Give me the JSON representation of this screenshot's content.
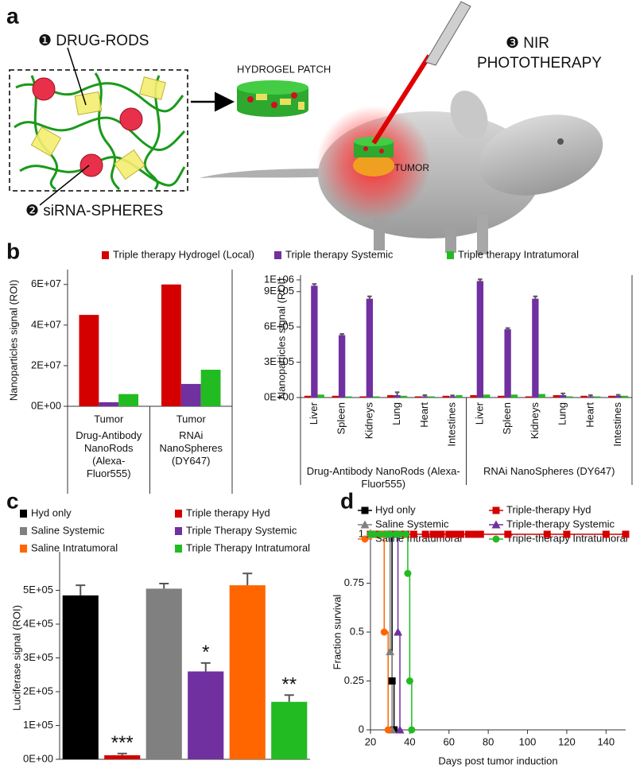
{
  "diagram": {
    "label": "a",
    "drug_rods": "❶ DRUG-RODS",
    "sirna_spheres": "❷ siRNA-SPHERES",
    "patch": "HYDROGEL PATCH",
    "phototherapy": [
      "❸ NIR",
      "PHOTOTHERAPY"
    ],
    "tumor": "TUMOR"
  },
  "chart_data": [
    {
      "type": "bar",
      "label": "b",
      "legend": "top",
      "y_label": "Nanoparticles signal (ROI)",
      "categories": [
        "Tumor",
        "Tumor"
      ],
      "groups": [
        "Drug-Antibody NanoRods (Alexa-Fluor555)",
        "RNAi NanoSpheres (DY647)"
      ],
      "series": [
        {
          "name": "Triple therapy Hydrogel (Local)",
          "color": "#d40000",
          "values": [
            45000000,
            60000000
          ]
        },
        {
          "name": "Triple therapy Systemic",
          "color": "#7030a0",
          "values": [
            2000000,
            11000000
          ]
        },
        {
          "name": "Triple therapy Intratumoral",
          "color": "#22bb22",
          "values": [
            6000000,
            18000000
          ]
        }
      ],
      "ylim": [
        0,
        65000000
      ],
      "yticks": [
        {
          "value": 0,
          "label": "0E+00"
        },
        {
          "value": 20000000,
          "label": "2E+07"
        },
        {
          "value": 40000000,
          "label": "4E+07"
        },
        {
          "value": 60000000,
          "label": "6E+07"
        }
      ]
    },
    {
      "type": "bar",
      "y_label": "Nanoparticles signal (ROI)",
      "categories": [
        "Liver",
        "Spleen",
        "Kidneys",
        "Lung",
        "Heart",
        "Intestines",
        "Liver",
        "Spleen",
        "Kidneys",
        "Lung",
        "Heart",
        "Intestines"
      ],
      "groups": [
        "Drug-Antibody NanoRods (Alexa-Fluor555)",
        "RNAi NanoSpheres (DY647)"
      ],
      "series": [
        {
          "color": "#d40000",
          "values": [
            15000,
            15000,
            10000,
            20000,
            10000,
            15000,
            20000,
            15000,
            10000,
            20000,
            15000,
            15000
          ]
        },
        {
          "color": "#7030a0",
          "values": [
            950000,
            530000,
            840000,
            20000,
            10000,
            10000,
            990000,
            580000,
            840000,
            20000,
            10000,
            15000
          ],
          "errors": [
            15000,
            10000,
            20000,
            25000,
            10000,
            8000,
            15000,
            10000,
            20000,
            15000,
            10000,
            8000
          ]
        },
        {
          "color": "#22bb22",
          "values": [
            25000,
            10000,
            10000,
            15000,
            10000,
            20000,
            25000,
            25000,
            30000,
            10000,
            10000,
            15000
          ]
        }
      ],
      "ylim": [
        0,
        1000000
      ],
      "yticks": [
        {
          "value": 0,
          "label": "0E+00"
        },
        {
          "value": 300000,
          "label": "3E+05"
        },
        {
          "value": 600000,
          "label": "6E+05"
        },
        {
          "value": 900000,
          "label": "9E+05"
        },
        {
          "value": 1000000,
          "label": "1E+06"
        }
      ]
    },
    {
      "type": "bar",
      "label": "c",
      "legend": "top",
      "y_label": "Luciferase signal (ROI)",
      "series": [
        {
          "name": "Hyd only",
          "color": "#000000",
          "values": [
            485000
          ],
          "errors": [
            30000
          ]
        },
        {
          "name": "Triple therapy Hyd",
          "color": "#d40000",
          "values": [
            12000
          ],
          "errors": [
            5000
          ],
          "annotation": "***"
        },
        {
          "name": "Saline Systemic",
          "color": "#808080",
          "values": [
            505000
          ],
          "errors": [
            15000
          ]
        },
        {
          "name": "Triple Therapy Systemic",
          "color": "#7030a0",
          "values": [
            260000
          ],
          "errors": [
            25000
          ],
          "annotation": "*"
        },
        {
          "name": "Saline Intratumoral",
          "color": "#ff6600",
          "values": [
            515000
          ],
          "errors": [
            35000
          ]
        },
        {
          "name": "Triple Therapy Intratumoral",
          "color": "#22bb22",
          "values": [
            170000
          ],
          "errors": [
            20000
          ],
          "annotation": "**"
        }
      ],
      "ylim": [
        0,
        600000
      ],
      "yticks": [
        {
          "value": 0,
          "label": "0E+00"
        },
        {
          "value": 100000,
          "label": "1E+05"
        },
        {
          "value": 200000,
          "label": "2E+05"
        },
        {
          "value": 300000,
          "label": "3E+05"
        },
        {
          "value": 400000,
          "label": "4E+05"
        },
        {
          "value": 500000,
          "label": "5E+05"
        }
      ]
    },
    {
      "type": "line",
      "label": "d",
      "legend": "top",
      "step": true,
      "x_label": "Days post tumor induction",
      "y_label": "Fraction survival",
      "series": [
        {
          "name": "Hyd only",
          "color": "#000000",
          "marker": "square",
          "x": [
            20,
            30,
            31,
            32
          ],
          "values": [
            1,
            1,
            0.25,
            0
          ]
        },
        {
          "name": "Triple-therapy Hyd",
          "color": "#d40000",
          "marker": "square",
          "x": [
            20,
            22,
            24,
            26,
            28,
            30,
            32,
            34,
            36,
            38,
            42,
            48,
            52,
            54,
            56,
            60,
            62,
            64,
            66,
            70,
            72,
            74,
            76,
            90,
            110,
            120,
            140,
            150
          ],
          "values": [
            1,
            1,
            1,
            1,
            1,
            1,
            1,
            1,
            1,
            1,
            1,
            1,
            1,
            1,
            1,
            1,
            1,
            1,
            1,
            1,
            1,
            1,
            1,
            1,
            1,
            1,
            1,
            1
          ]
        },
        {
          "name": "Saline Systemic",
          "color": "#808080",
          "marker": "triangle",
          "x": [
            20,
            29,
            30,
            31
          ],
          "values": [
            1,
            1,
            0.4,
            0
          ]
        },
        {
          "name": "Triple-therapy Systemic",
          "color": "#7030a0",
          "marker": "triangle",
          "x": [
            20,
            30,
            33,
            34,
            35
          ],
          "values": [
            1,
            1,
            1,
            0.5,
            0
          ]
        },
        {
          "name": "Saline Intratumoral",
          "color": "#ff6600",
          "marker": "circle",
          "x": [
            20,
            26,
            27,
            29
          ],
          "values": [
            1,
            1,
            0.5,
            0
          ]
        },
        {
          "name": "Triple-therapy Intratumoral",
          "color": "#22bb22",
          "marker": "circle",
          "x": [
            20,
            22,
            25,
            28,
            30,
            33,
            35,
            38,
            39,
            40,
            41
          ],
          "values": [
            1,
            1,
            1,
            1,
            1,
            1,
            1,
            1,
            0.8,
            0.25,
            0
          ]
        }
      ],
      "xlim": [
        20,
        150
      ],
      "xticks": [
        20,
        40,
        60,
        80,
        100,
        120,
        140
      ],
      "ylim": [
        0,
        1
      ],
      "yticks": [
        0,
        0.25,
        0.5,
        0.75,
        1
      ]
    }
  ]
}
